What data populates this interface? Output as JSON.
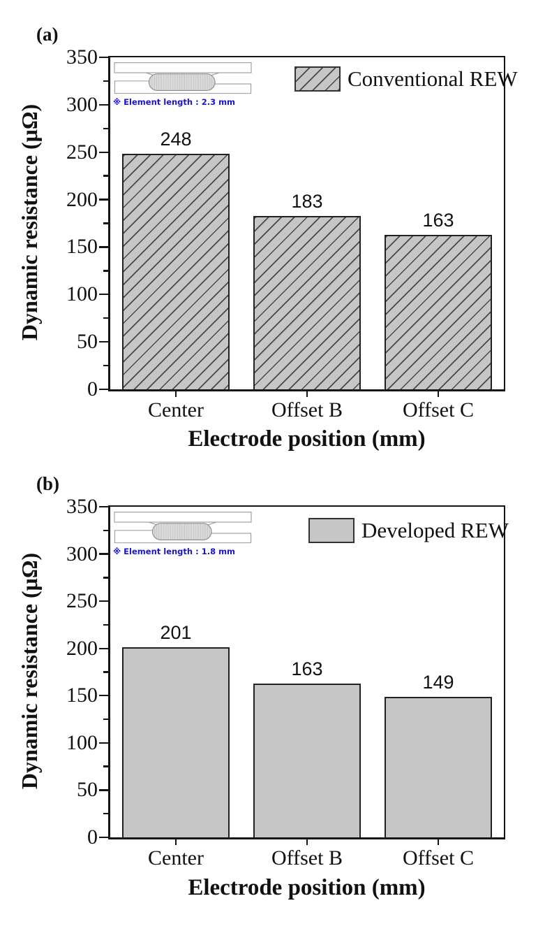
{
  "figure": {
    "background": "#ffffff",
    "bar_fill_gray": "#c6c6c6",
    "axis_color": "#151515",
    "inset_note_color": "#1a15cc"
  },
  "chart_data": [
    {
      "type": "bar",
      "panel_label": "(a)",
      "categories": [
        "Center",
        "Offset B",
        "Offset C"
      ],
      "values": [
        248,
        183,
        163
      ],
      "xlabel": "Electrode position (mm)",
      "ylabel": "Dynamic resistance (μΩ)",
      "ylim": [
        0,
        350
      ],
      "ytick_step": 50,
      "ytick_minor_step": 25,
      "grid": false,
      "legend_position": "top-right-inside",
      "legend": {
        "label": "Conventional REW",
        "swatch_style": "gray-diagonal-hatch"
      },
      "bar_style": {
        "fill": "#c6c6c6",
        "hatch": "diagonal",
        "border": "#222222"
      },
      "inset_note": "※ Element length : 2.3 mm"
    },
    {
      "type": "bar",
      "panel_label": "(b)",
      "categories": [
        "Center",
        "Offset B",
        "Offset C"
      ],
      "values": [
        201,
        163,
        149
      ],
      "xlabel": "Electrode position (mm)",
      "ylabel": "Dynamic resistance (μΩ)",
      "ylim": [
        0,
        350
      ],
      "ytick_step": 50,
      "ytick_minor_step": 25,
      "grid": false,
      "legend_position": "top-right-inside",
      "legend": {
        "label": "Developed REW",
        "swatch_style": "gray-solid"
      },
      "bar_style": {
        "fill": "#c6c6c6",
        "hatch": "",
        "border": "#222222"
      },
      "inset_note": "※ Element length : 1.8 mm"
    }
  ]
}
